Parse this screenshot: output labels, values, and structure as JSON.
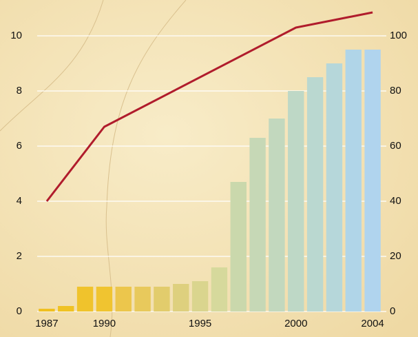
{
  "chart_data": {
    "type": "bar-line",
    "x": [
      1987,
      1988,
      1989,
      1990,
      1991,
      1992,
      1993,
      1994,
      1995,
      1996,
      1997,
      1998,
      1999,
      2000,
      2001,
      2002,
      2003,
      2004
    ],
    "xlim": [
      1986.5,
      2004.5
    ],
    "xticks": [
      1987,
      1990,
      1995,
      2000,
      2004
    ],
    "ylim": [
      0,
      11.3
    ],
    "yticks": [
      0,
      2,
      4,
      6,
      8,
      10
    ],
    "y2lim": [
      0,
      113
    ],
    "y2ticks": [
      0,
      20,
      40,
      60,
      80,
      100
    ],
    "grid": true,
    "series": [
      {
        "type": "bar",
        "values": [
          0.1,
          0.2,
          0.9,
          0.9,
          0.9,
          0.9,
          0.9,
          1.0,
          1.1,
          1.6,
          4.7,
          6.3,
          7.0,
          8.0,
          8.5,
          9.0,
          9.5,
          9.5
        ],
        "colors": [
          "#f0c020",
          "#f0c224",
          "#f0c32c",
          "#f0c430",
          "#ecc64c",
          "#e8c95c",
          "#e2cc6c",
          "#ded07e",
          "#dad58e",
          "#d6d99c",
          "#cad8ac",
          "#c6d8b6",
          "#c2d8be",
          "#bed8c6",
          "#bad8d0",
          "#b6d7da",
          "#b0d5e8",
          "#b0d4ee"
        ]
      },
      {
        "type": "line",
        "axis": "y2",
        "color": "#b01c2c",
        "x": [
          1987,
          1990,
          2000,
          2004
        ],
        "values": [
          40,
          67,
          103,
          108.5
        ]
      }
    ]
  }
}
